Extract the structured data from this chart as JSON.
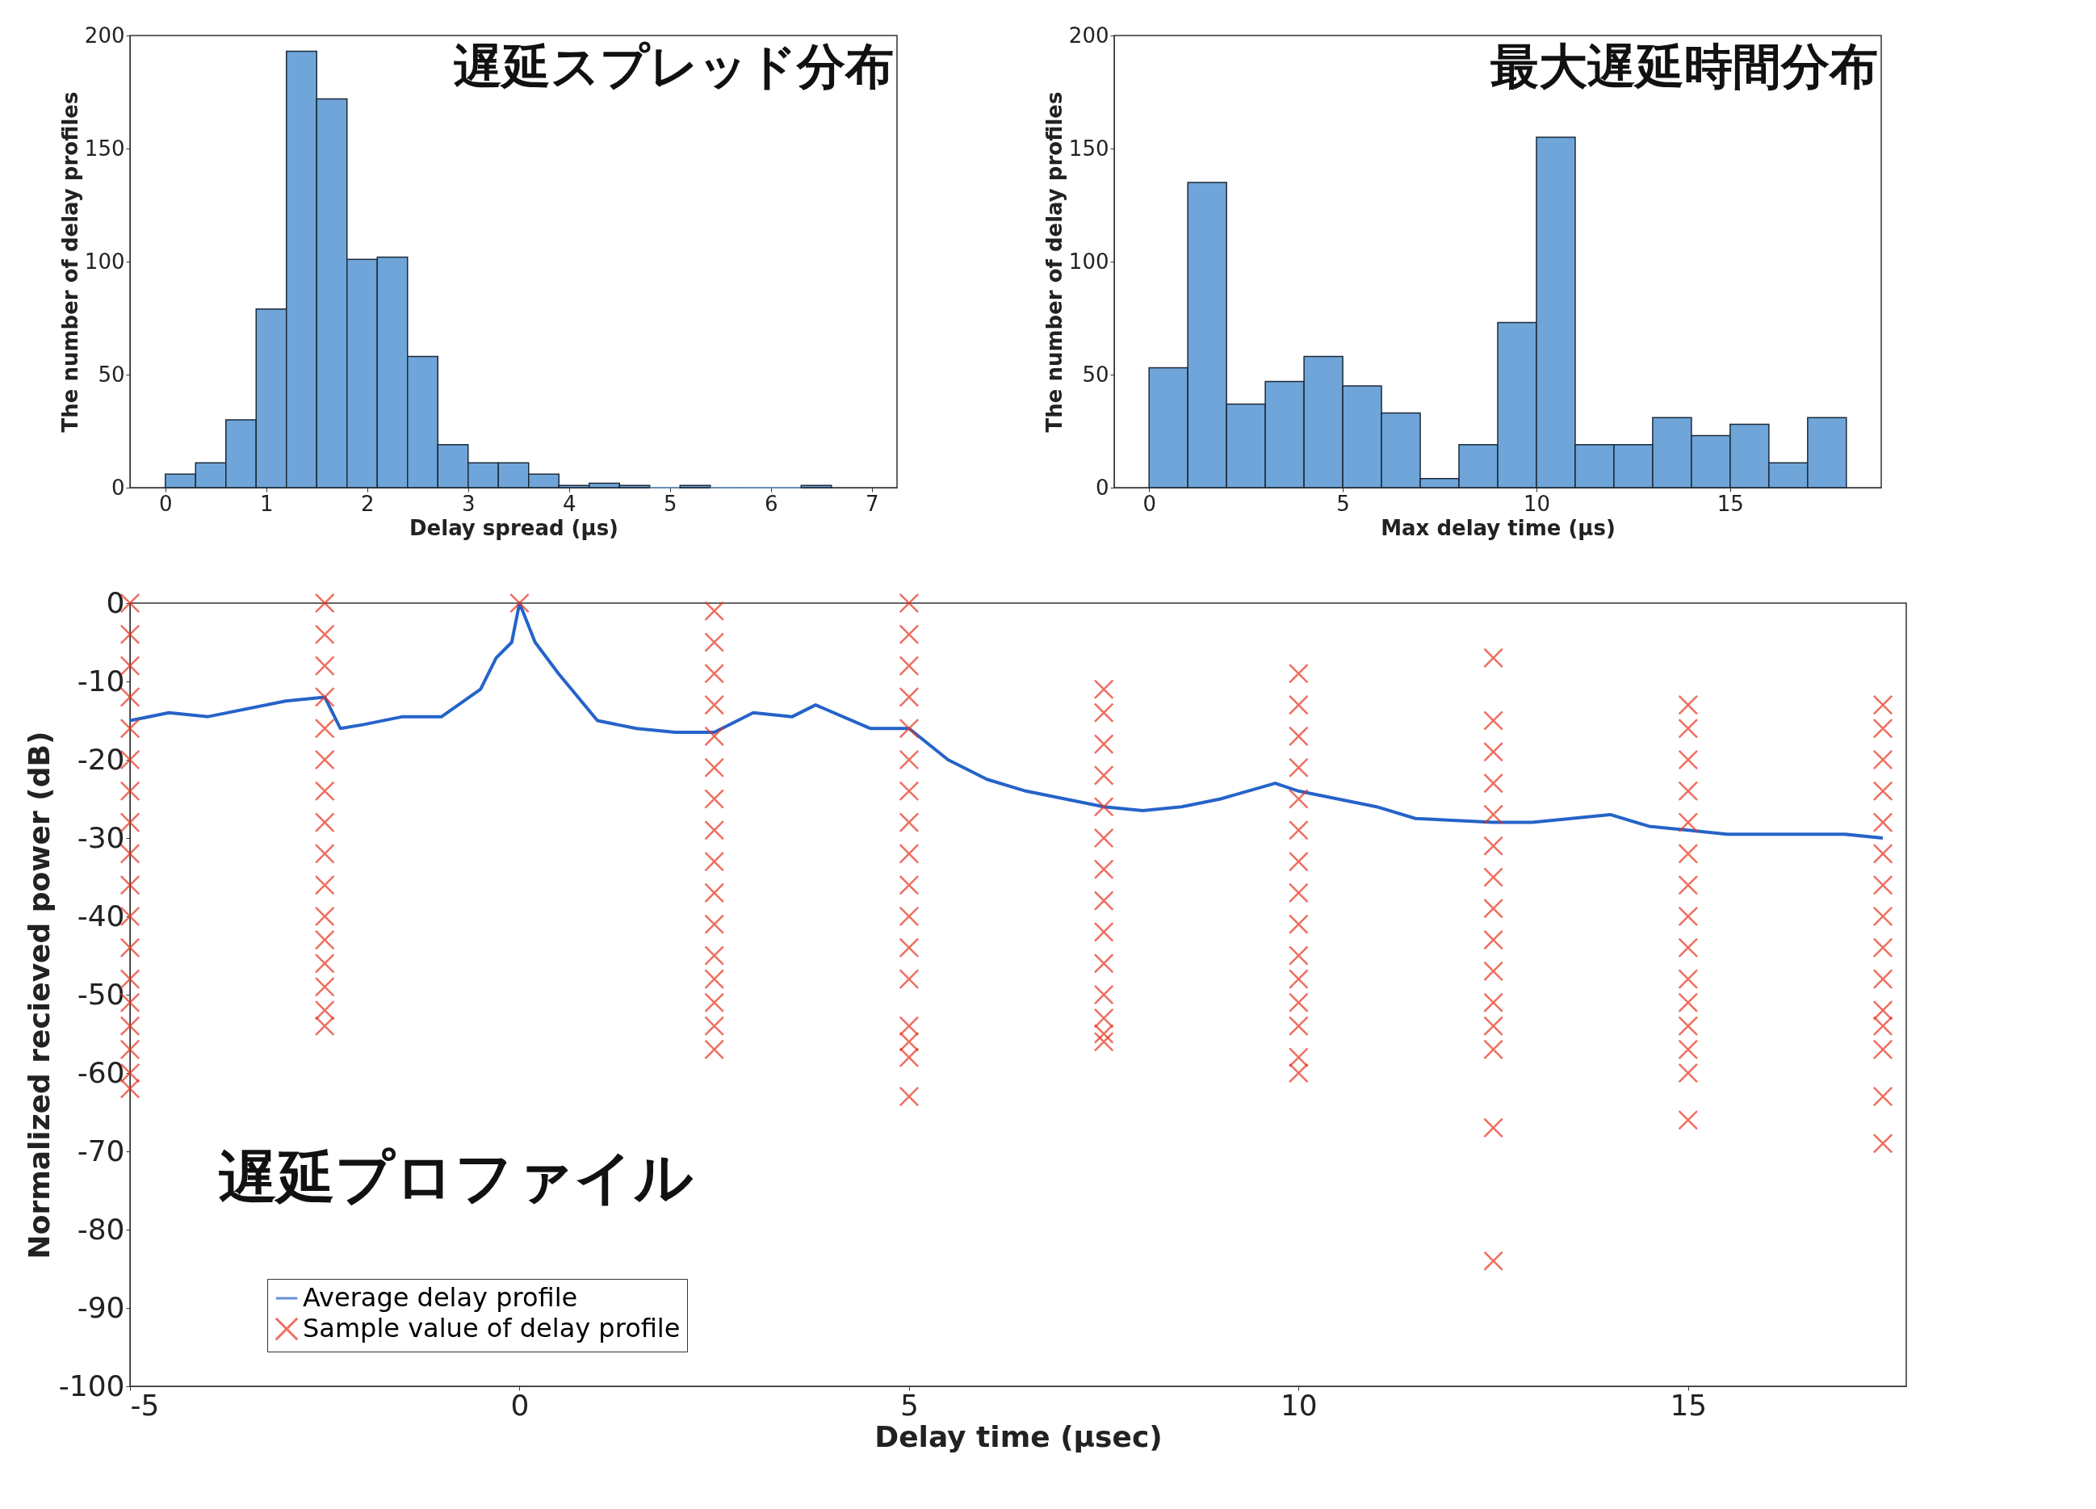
{
  "chart_data": [
    {
      "type": "histogram",
      "title": "遅延スプレッド分布",
      "xlabel": "Delay spread (µs)",
      "ylabel": "The number of delay profiles",
      "color": "#6fa5d8",
      "bins": [
        0,
        0.3,
        0.6,
        0.9,
        1.2,
        1.5,
        1.8,
        2.1,
        2.4,
        2.7,
        3.0,
        3.3,
        3.6,
        3.9,
        4.2,
        4.5,
        4.8,
        5.1,
        5.4,
        5.7,
        6.0,
        6.3,
        6.6
      ],
      "values": [
        6,
        11,
        30,
        79,
        193,
        172,
        101,
        102,
        58,
        19,
        11,
        11,
        6,
        1,
        2,
        1,
        0,
        1,
        0,
        0,
        0,
        1
      ],
      "xlim": [
        -0.35,
        7.25
      ],
      "ylim": [
        0,
        200
      ],
      "xticks": [
        0,
        1,
        2,
        3,
        4,
        5,
        6,
        7
      ],
      "yticks": [
        0,
        50,
        100,
        150,
        200
      ]
    },
    {
      "type": "histogram",
      "title": "最大遅延時間分布",
      "xlabel": "Max delay time (µs)",
      "ylabel": "The number of delay profiles",
      "color": "#6fa5d8",
      "bins": [
        0,
        1,
        2,
        3,
        4,
        5,
        6,
        7,
        8,
        9,
        10,
        11,
        12,
        13,
        14,
        15,
        16,
        17,
        18
      ],
      "values": [
        53,
        135,
        37,
        47,
        58,
        45,
        33,
        4,
        19,
        73,
        155,
        19,
        19,
        31,
        23,
        28,
        11,
        31
      ],
      "xlim": [
        -0.9,
        18.9
      ],
      "ylim": [
        0,
        200
      ],
      "xticks": [
        0,
        5,
        10,
        15
      ],
      "yticks": [
        0,
        50,
        100,
        150,
        200
      ]
    },
    {
      "type": "line",
      "title": "遅延プロファイル",
      "xlabel": "Delay time (μsec)",
      "ylabel": "Normalized recieved power (dB)",
      "legend": "bottom left",
      "xlim": [
        -5,
        17.8
      ],
      "ylim": [
        -100,
        0
      ],
      "xticks": [
        -5,
        0,
        5,
        10,
        15
      ],
      "yticks": [
        0,
        -10,
        -20,
        -30,
        -40,
        -50,
        -60,
        -70,
        -80,
        -90,
        -100
      ],
      "series": [
        {
          "name": "Average delay profile",
          "type": "line",
          "line_style": "solid",
          "color": "#2563c9",
          "x": [
            -5,
            -4.5,
            -4,
            -3,
            -2.5,
            -2.3,
            -2,
            -1.5,
            -1,
            -0.5,
            -0.3,
            -0.1,
            0,
            0.2,
            0.5,
            1,
            1.5,
            2,
            2.5,
            3,
            3.5,
            3.8,
            4.5,
            5,
            5.5,
            6,
            6.5,
            7,
            7.5,
            8,
            8.5,
            9,
            9.7,
            10,
            10.5,
            11,
            11.5,
            12.5,
            13,
            14,
            14.5,
            15,
            15.5,
            16,
            17,
            17.5
          ],
          "values": [
            -15,
            -14,
            -14.5,
            -12.5,
            -12,
            -16,
            -15.5,
            -14.5,
            -14.5,
            -11,
            -7,
            -5,
            0,
            -5,
            -9,
            -15,
            -16,
            -16.5,
            -16.5,
            -14,
            -14.5,
            -13,
            -16,
            -16,
            -20,
            -22.5,
            -24,
            -25,
            -26,
            -26.5,
            -26,
            -25,
            -23,
            -24,
            -25,
            -26,
            -27.5,
            -28,
            -28,
            -27,
            -28.5,
            -29,
            -29.5,
            -29.5,
            -29.5,
            -30
          ]
        },
        {
          "name": "Sample value of delay profile",
          "type": "scatter",
          "marker": "cross",
          "color": "#e8321e",
          "x": [
            -5,
            -5,
            -5,
            -5,
            -5,
            -5,
            -5,
            -5,
            -5,
            -5,
            -5,
            -5,
            -5,
            -5,
            -5,
            -5,
            -5,
            -5,
            -2.5,
            -2.5,
            -2.5,
            -2.5,
            -2.5,
            -2.5,
            -2.5,
            -2.5,
            -2.5,
            -2.5,
            -2.5,
            -2.5,
            -2.5,
            -2.5,
            -2.5,
            -2.5,
            0,
            2.5,
            2.5,
            2.5,
            2.5,
            2.5,
            2.5,
            2.5,
            2.5,
            2.5,
            2.5,
            2.5,
            2.5,
            2.5,
            2.5,
            2.5,
            2.5,
            5,
            5,
            5,
            5,
            5,
            5,
            5,
            5,
            5,
            5,
            5,
            5,
            5,
            5,
            5,
            5,
            5,
            7.5,
            7.5,
            7.5,
            7.5,
            7.5,
            7.5,
            7.5,
            7.5,
            7.5,
            7.5,
            7.5,
            7.5,
            7.5,
            7.5,
            10,
            10,
            10,
            10,
            10,
            10,
            10,
            10,
            10,
            10,
            10,
            10,
            10,
            10,
            10,
            12.5,
            12.5,
            12.5,
            12.5,
            12.5,
            12.5,
            12.5,
            12.5,
            12.5,
            12.5,
            12.5,
            12.5,
            12.5,
            12.5,
            12.5,
            15,
            15,
            15,
            15,
            15,
            15,
            15,
            15,
            15,
            15,
            15,
            15,
            15,
            15,
            15,
            17.5,
            17.5,
            17.5,
            17.5,
            17.5,
            17.5,
            17.5,
            17.5,
            17.5,
            17.5,
            17.5,
            17.5,
            17.5,
            17.5,
            17.5
          ],
          "values": [
            0,
            -4,
            -8,
            -12,
            -16,
            -20,
            -24,
            -28,
            -32,
            -36,
            -40,
            -44,
            -48,
            -51,
            -54,
            -57,
            -60,
            -62,
            0,
            -4,
            -8,
            -12,
            -16,
            -20,
            -24,
            -28,
            -32,
            -36,
            -40,
            -43,
            -46,
            -49,
            -52,
            -54,
            0,
            -1,
            -5,
            -9,
            -13,
            -17,
            -21,
            -25,
            -29,
            -33,
            -37,
            -41,
            -45,
            -48,
            -51,
            -54,
            -57,
            0,
            -4,
            -8,
            -12,
            -16,
            -20,
            -24,
            -28,
            -32,
            -36,
            -40,
            -44,
            -48,
            -54,
            -56,
            -58,
            -63,
            -11,
            -14,
            -18,
            -22,
            -26,
            -30,
            -34,
            -38,
            -42,
            -46,
            -50,
            -53,
            -55,
            -56,
            -9,
            -13,
            -17,
            -21,
            -25,
            -29,
            -33,
            -37,
            -41,
            -45,
            -48,
            -51,
            -54,
            -58,
            -60,
            -7,
            -15,
            -19,
            -23,
            -27,
            -31,
            -35,
            -39,
            -43,
            -47,
            -51,
            -54,
            -57,
            -67,
            -84,
            -13,
            -16,
            -20,
            -24,
            -28,
            -32,
            -36,
            -40,
            -44,
            -48,
            -51,
            -54,
            -57,
            -60,
            -66,
            -13,
            -16,
            -20,
            -24,
            -28,
            -32,
            -36,
            -40,
            -44,
            -48,
            -52,
            -54,
            -57,
            -63,
            -69
          ]
        }
      ]
    }
  ]
}
